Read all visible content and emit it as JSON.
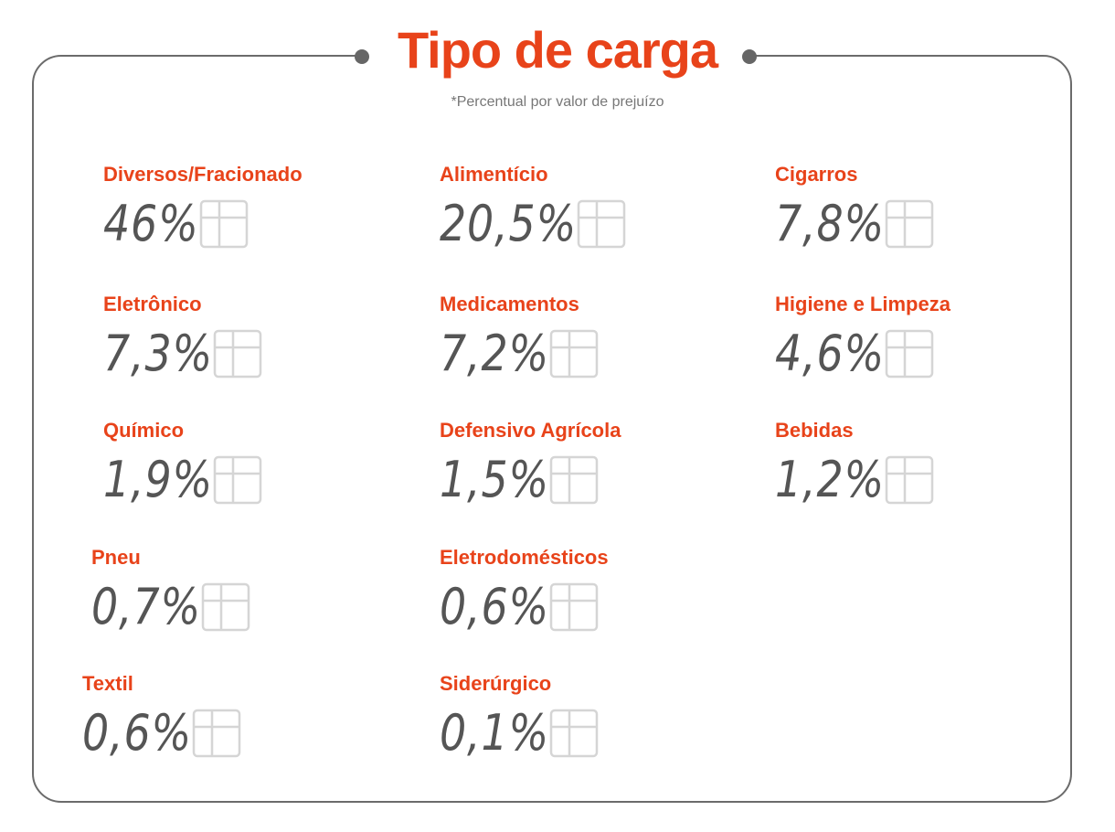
{
  "title": "Tipo de carga",
  "subtitle": "*Percentual por valor de prejuízo",
  "accent_color": "#e8431a",
  "items": [
    {
      "label": "Diversos/Fracionado",
      "value": "46%",
      "icon": "box-icon"
    },
    {
      "label": "Alimentício",
      "value": "20,5%",
      "icon": "fork-spoon-icon"
    },
    {
      "label": "Cigarros",
      "value": "7,8%",
      "icon": "cigarette-pack-icon"
    },
    {
      "label": "Eletrônico",
      "value": "7,3%",
      "icon": "devices-icon"
    },
    {
      "label": "Medicamentos",
      "value": "7,2%",
      "icon": "medicine-icon"
    },
    {
      "label": "Higiene e Limpeza",
      "value": "4,6%",
      "icon": "cleaning-bottles-icon"
    },
    {
      "label": "Químico",
      "value": "1,9%",
      "icon": "flask-icon"
    },
    {
      "label": "Defensivo Agrícola",
      "value": "1,5%",
      "icon": "pesticide-container-icon"
    },
    {
      "label": "Bebidas",
      "value": "1,2%",
      "icon": "bottles-icon"
    },
    {
      "label": "Pneu",
      "value": "0,7%",
      "icon": "tire-icon"
    },
    {
      "label": "Eletrodomésticos",
      "value": "0,6%",
      "icon": "appliances-icon"
    },
    {
      "label": "Textil",
      "value": "0,6%",
      "icon": "clothes-icon"
    },
    {
      "label": "Siderúrgico",
      "value": "0,1%",
      "icon": "steel-beam-icon"
    }
  ]
}
